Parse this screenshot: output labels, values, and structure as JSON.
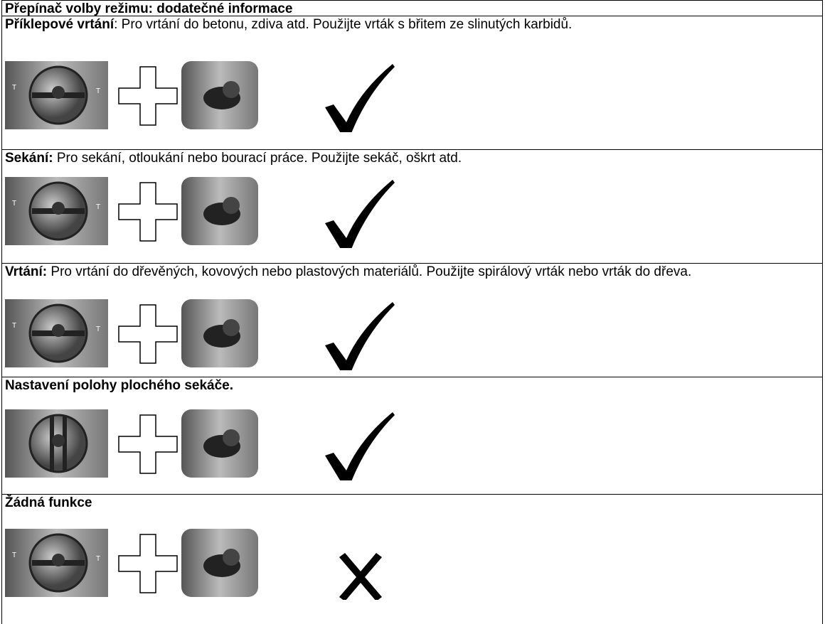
{
  "header": {
    "title": "Přepínač volby režimu: dodatečné informace"
  },
  "rows": [
    {
      "label": "Příklepové vrtání",
      "text": ": Pro vrtání do betonu, zdiva atd. Použijte vrták s břitem ze slinutých karbidů."
    },
    {
      "label": "Sekání:",
      "text": " Pro sekání, otloukání nebo bourací práce. Použijte sekáč, oškrt atd."
    },
    {
      "label": "Vrtání:",
      "text": " Pro vrtání do dřevěných, kovových nebo plastových materiálů. Použijte spirálový vrták nebo vrták do dřeva."
    },
    {
      "label": "Nastavení polohy plochého sekáče."
    },
    {
      "label": "Žádná funkce"
    }
  ]
}
